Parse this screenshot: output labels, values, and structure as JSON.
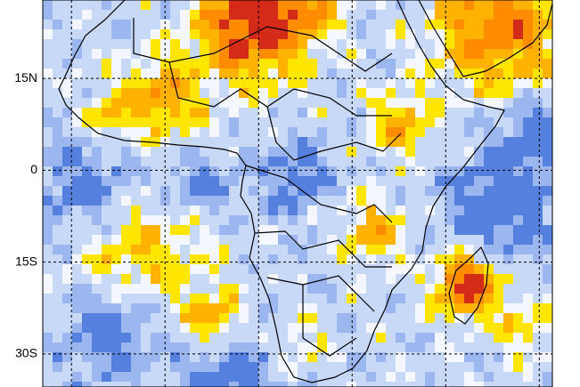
{
  "map": {
    "latlim": [
      -35.4,
      27.8
    ],
    "lonlim": [
      -19.6,
      62.1
    ],
    "lat_ticks": [
      {
        "value": 15,
        "label": "15N"
      },
      0,
      {
        "value": -15,
        "label": "15S"
      },
      {
        "value": -30,
        "label": "30S"
      }
    ],
    "lon_ticks": [
      -15,
      0,
      15,
      30,
      45,
      60
    ]
  }
}
